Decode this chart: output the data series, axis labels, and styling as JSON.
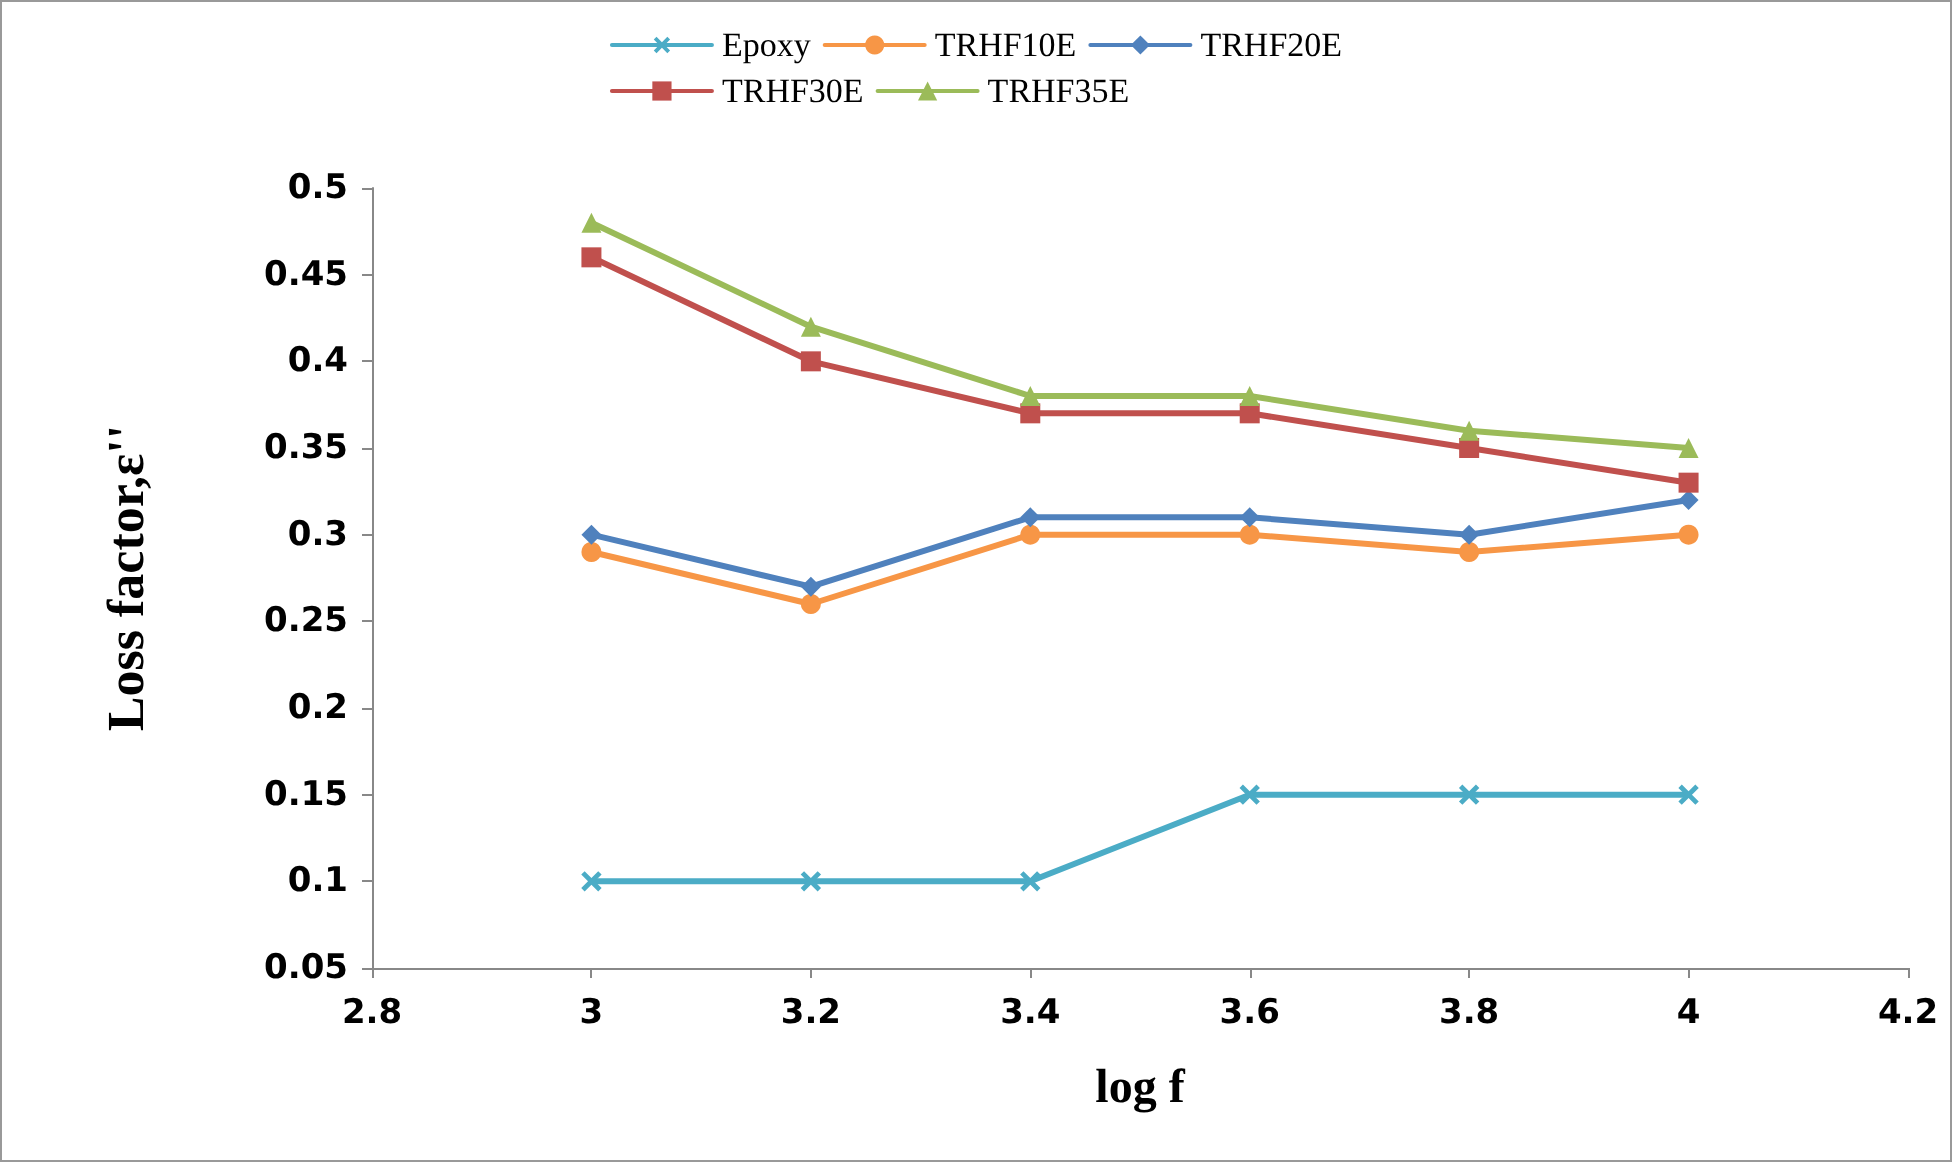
{
  "chart_data": {
    "type": "line",
    "xlabel": "log f",
    "ylabel": "Loss factor,ε''",
    "x": [
      3,
      3.2,
      3.4,
      3.6,
      3.8,
      4
    ],
    "series": [
      {
        "name": "Epoxy",
        "color": "#4bacc6",
        "marker": "cross",
        "values": [
          0.1,
          0.1,
          0.1,
          0.15,
          0.15,
          0.15
        ]
      },
      {
        "name": "TRHF10E",
        "color": "#f79646",
        "marker": "circle",
        "values": [
          0.29,
          0.26,
          0.3,
          0.3,
          0.29,
          0.3
        ]
      },
      {
        "name": "TRHF20E",
        "color": "#4f81bd",
        "marker": "diamond",
        "values": [
          0.3,
          0.27,
          0.31,
          0.31,
          0.3,
          0.32
        ]
      },
      {
        "name": "TRHF30E",
        "color": "#c0504d",
        "marker": "square",
        "values": [
          0.46,
          0.4,
          0.37,
          0.37,
          0.35,
          0.33
        ]
      },
      {
        "name": "TRHF35E",
        "color": "#9bbb59",
        "marker": "triangle",
        "values": [
          0.48,
          0.42,
          0.38,
          0.38,
          0.36,
          0.35
        ]
      }
    ],
    "xlim": [
      2.8,
      4.2
    ],
    "xticks": [
      2.8,
      3,
      3.2,
      3.4,
      3.6,
      3.8,
      4,
      4.2
    ],
    "ylim": [
      0.05,
      0.5
    ],
    "yticks": [
      0.05,
      0.1,
      0.15,
      0.2,
      0.25,
      0.3,
      0.35,
      0.4,
      0.45,
      0.5
    ],
    "grid": false,
    "legend": "top",
    "line_style": "solid"
  }
}
